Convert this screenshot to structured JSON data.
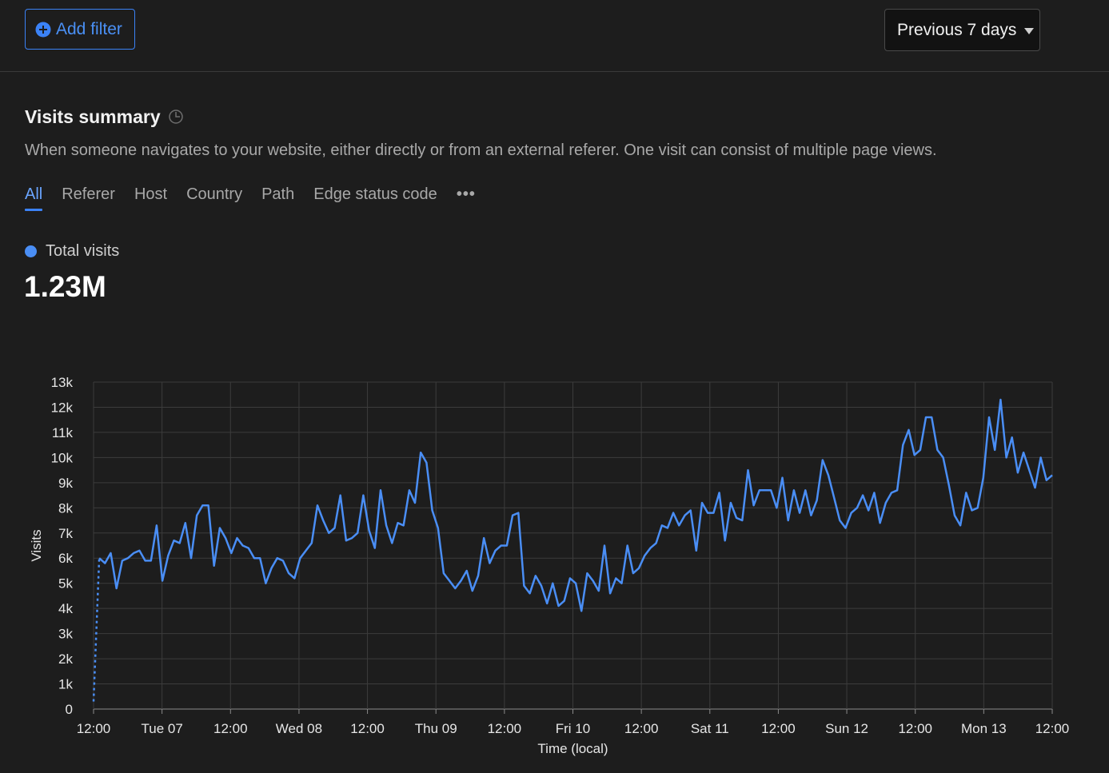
{
  "toolbar": {
    "add_filter_label": "Add filter",
    "range_label": "Previous 7 days"
  },
  "summary": {
    "title": "Visits summary",
    "description": "When someone navigates to your website, either directly or from an external referer. One visit can consist of multiple page views.",
    "tabs": [
      "All",
      "Referer",
      "Host",
      "Country",
      "Path",
      "Edge status code"
    ],
    "active_tab": "All",
    "more_label": "•••",
    "legend_label": "Total visits",
    "total_value": "1.23M"
  },
  "colors": {
    "accent": "#3b82f6",
    "series": "#4a8ef5",
    "background": "#1d1d1d"
  },
  "chart_data": {
    "type": "line",
    "xlabel": "Time (local)",
    "ylabel": "Visits",
    "ylim": [
      0,
      13000
    ],
    "yticks": [
      "0",
      "1k",
      "2k",
      "3k",
      "4k",
      "5k",
      "6k",
      "7k",
      "8k",
      "9k",
      "10k",
      "11k",
      "12k",
      "13k"
    ],
    "xticks": [
      "12:00",
      "Tue 07",
      "12:00",
      "Wed 08",
      "12:00",
      "Thu 09",
      "12:00",
      "Fri 10",
      "12:00",
      "Sat 11",
      "12:00",
      "Sun 12",
      "12:00",
      "Mon 13",
      "12:00"
    ],
    "x_hours_range": [
      0,
      168
    ],
    "grid": true,
    "series": [
      {
        "name": "Total visits",
        "partial_start": [
          [
            0,
            300
          ],
          [
            1,
            6000
          ]
        ],
        "values": [
          6000,
          5800,
          6200,
          4800,
          5900,
          6000,
          6200,
          6300,
          5900,
          5900,
          7300,
          5100,
          6100,
          6700,
          6600,
          7400,
          6000,
          7700,
          8100,
          8100,
          5700,
          7200,
          6800,
          6200,
          6800,
          6500,
          6400,
          6000,
          6000,
          5000,
          5600,
          6000,
          5900,
          5400,
          5200,
          6000,
          6300,
          6600,
          8100,
          7500,
          7000,
          7200,
          8500,
          6700,
          6800,
          7000,
          8500,
          7100,
          6400,
          8700,
          7300,
          6600,
          7400,
          7300,
          8700,
          8200,
          10200,
          9800,
          7900,
          7200,
          5400,
          5100,
          4800,
          5100,
          5500,
          4700,
          5300,
          6800,
          5800,
          6300,
          6500,
          6500,
          7700,
          7800,
          4900,
          4600,
          5300,
          4900,
          4200,
          5000,
          4100,
          4300,
          5200,
          5000,
          3900,
          5400,
          5100,
          4700,
          6500,
          4600,
          5200,
          5000,
          6500,
          5400,
          5600,
          6100,
          6400,
          6600,
          7300,
          7200,
          7800,
          7300,
          7700,
          7900,
          6300,
          8200,
          7800,
          7800,
          8600,
          6700,
          8200,
          7600,
          7500,
          9500,
          8100,
          8700,
          8700,
          8700,
          8000,
          9200,
          7500,
          8700,
          7800,
          8700,
          7700,
          8300,
          9900,
          9300,
          8400,
          7500,
          7200,
          7800,
          8000,
          8500,
          7900,
          8600,
          7400,
          8200,
          8600,
          8700,
          10500,
          11100,
          10100,
          10300,
          11600,
          11600,
          10300,
          10000,
          8900,
          7700,
          7300,
          8600,
          7900,
          8000,
          9200,
          11600,
          10300,
          12300,
          10000,
          10800,
          9400,
          10200,
          9500,
          8800,
          10000,
          9100,
          9300
        ]
      }
    ]
  }
}
